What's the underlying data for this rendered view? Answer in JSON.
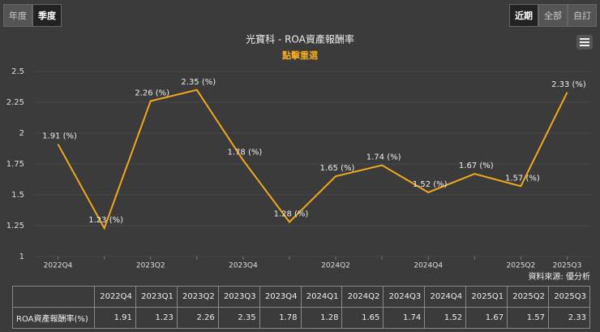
{
  "chart_data": {
    "type": "line",
    "title": "光寶科 - ROA資產報酬率",
    "subtitle": "點擊重選",
    "categories": [
      "2022Q4",
      null,
      "2023Q2",
      null,
      "2023Q4",
      null,
      "2024Q2",
      null,
      "2024Q4",
      null,
      "2025Q2",
      "2025Q3"
    ],
    "series": [
      {
        "name": "ROA資產報酬率(%)",
        "color": "#f0a81e",
        "values": [
          1.91,
          1.23,
          2.26,
          2.35,
          1.78,
          1.28,
          1.65,
          1.74,
          1.52,
          1.67,
          1.57,
          2.33
        ],
        "value_labels": [
          "1.91 (%)",
          "1.23 (%)",
          "2.26 (%)",
          "2.35 (%)",
          "1.78 (%)",
          "1.28 (%)",
          "1.65 (%)",
          "1.74 (%)",
          "1.52 (%)",
          "1.67 (%)",
          "1.57 (%)",
          "2.33 (%)"
        ]
      }
    ],
    "ylim": [
      1,
      2.5
    ],
    "yticks": [
      1,
      1.25,
      1.5,
      1.75,
      2,
      2.25,
      2.5
    ],
    "grid": true,
    "source": "資料來源: 優分析"
  },
  "buttons": {
    "left": [
      "年度",
      "季度"
    ],
    "left_active": 1,
    "right": [
      "近期",
      "全部",
      "自訂"
    ],
    "right_active": 0
  },
  "table": {
    "header": [
      "2022Q4",
      "2023Q1",
      "2023Q2",
      "2023Q3",
      "2023Q4",
      "2024Q1",
      "2024Q2",
      "2024Q3",
      "2024Q4",
      "2025Q1",
      "2025Q2",
      "2025Q3"
    ],
    "row_label": "ROA資產報酬率(%)",
    "values": [
      1.91,
      1.23,
      2.26,
      2.35,
      1.78,
      1.28,
      1.65,
      1.74,
      1.52,
      1.67,
      1.57,
      2.33
    ]
  }
}
